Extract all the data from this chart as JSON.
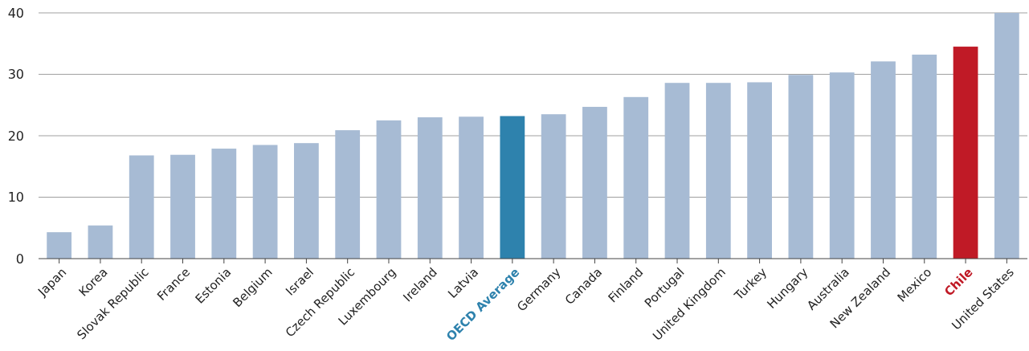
{
  "chart_data": {
    "type": "bar",
    "categories": [
      "Japan",
      "Korea",
      "Slovak Republic",
      "France",
      "Estonia",
      "Belgium",
      "Israel",
      "Czech Republic",
      "Luxembourg",
      "Ireland",
      "Latvia",
      "OECD Average",
      "Germany",
      "Canada",
      "Finland",
      "Portugal",
      "United Kingdom",
      "Turkey",
      "Hungary",
      "Australia",
      "New Zealand",
      "Mexico",
      "Chile",
      "United States"
    ],
    "values": [
      4.3,
      5.4,
      16.8,
      16.9,
      17.9,
      18.5,
      18.8,
      20.9,
      22.5,
      23.0,
      23.1,
      23.2,
      23.5,
      24.7,
      26.3,
      28.6,
      28.6,
      28.7,
      29.9,
      30.3,
      32.1,
      33.2,
      34.5,
      40.0
    ],
    "colors": [
      "#a7bbd4",
      "#a7bbd4",
      "#a7bbd4",
      "#a7bbd4",
      "#a7bbd4",
      "#a7bbd4",
      "#a7bbd4",
      "#a7bbd4",
      "#a7bbd4",
      "#a7bbd4",
      "#a7bbd4",
      "#2e82ad",
      "#a7bbd4",
      "#a7bbd4",
      "#a7bbd4",
      "#a7bbd4",
      "#a7bbd4",
      "#a7bbd4",
      "#a7bbd4",
      "#a7bbd4",
      "#a7bbd4",
      "#a7bbd4",
      "#c01a26",
      "#a7bbd4"
    ],
    "ylim": [
      0,
      40
    ],
    "yticks": [
      0,
      10,
      20,
      30,
      40
    ],
    "grid": "y"
  }
}
